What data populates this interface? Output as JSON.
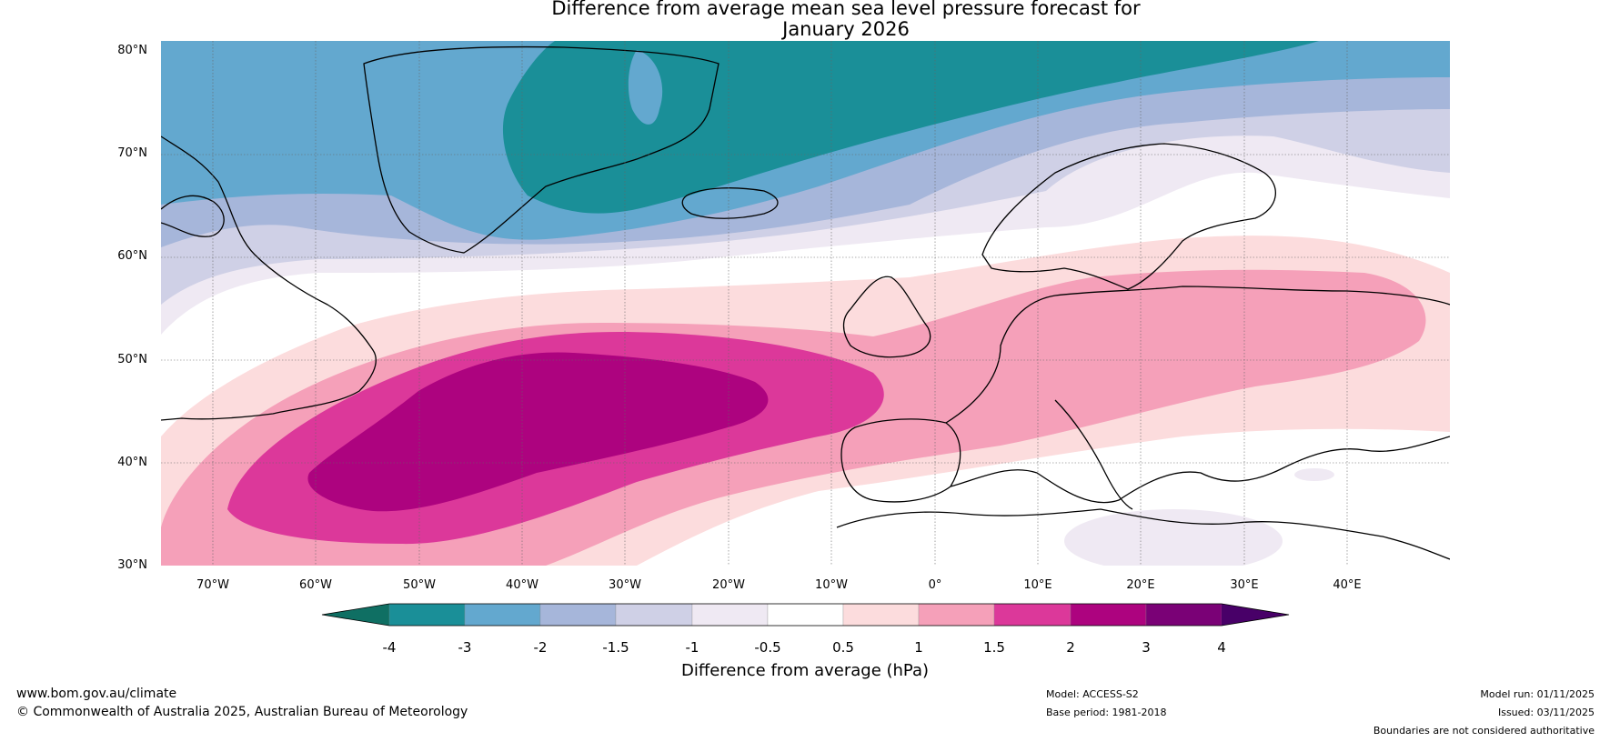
{
  "title": {
    "line1": "Difference from average mean sea level pressure forecast for",
    "line2": "January 2026"
  },
  "map": {
    "region": "North Atlantic and Europe",
    "lon_range": [
      -75,
      50
    ],
    "lat_range": [
      30,
      81
    ],
    "lat_labels": [
      "80°N",
      "70°N",
      "60°N",
      "50°N",
      "40°N",
      "30°N"
    ],
    "lon_labels": [
      "70°W",
      "60°W",
      "50°W",
      "40°W",
      "30°W",
      "20°W",
      "10°W",
      "0°",
      "10°E",
      "20°E",
      "30°E",
      "40°E"
    ],
    "gridlines": true
  },
  "colorbar": {
    "label": "Difference from average (hPa)",
    "ticks": [
      "-4",
      "-3",
      "-2",
      "-1.5",
      "-1",
      "-0.5",
      "0.5",
      "1",
      "1.5",
      "2",
      "3",
      "4"
    ],
    "colors": [
      "#0f6f63",
      "#1a8f98",
      "#63a8cf",
      "#a6b6da",
      "#cfd0e6",
      "#efe9f3",
      "#ffffff",
      "#fcdcdd",
      "#f5a0b9",
      "#dc389a",
      "#ad037f",
      "#7a0176",
      "#480068"
    ]
  },
  "footer": {
    "website": "www.bom.gov.au/climate",
    "copyright": "© Commonwealth of Australia 2025, Australian Bureau of Meteorology",
    "model": "Model: ACCESS-S2",
    "base_period": "Base period: 1981-2018",
    "model_run": "Model run: 01/11/2025",
    "issued": "Issued: 03/11/2025",
    "disclaimer": "Boundaries are not considered authoritative"
  }
}
